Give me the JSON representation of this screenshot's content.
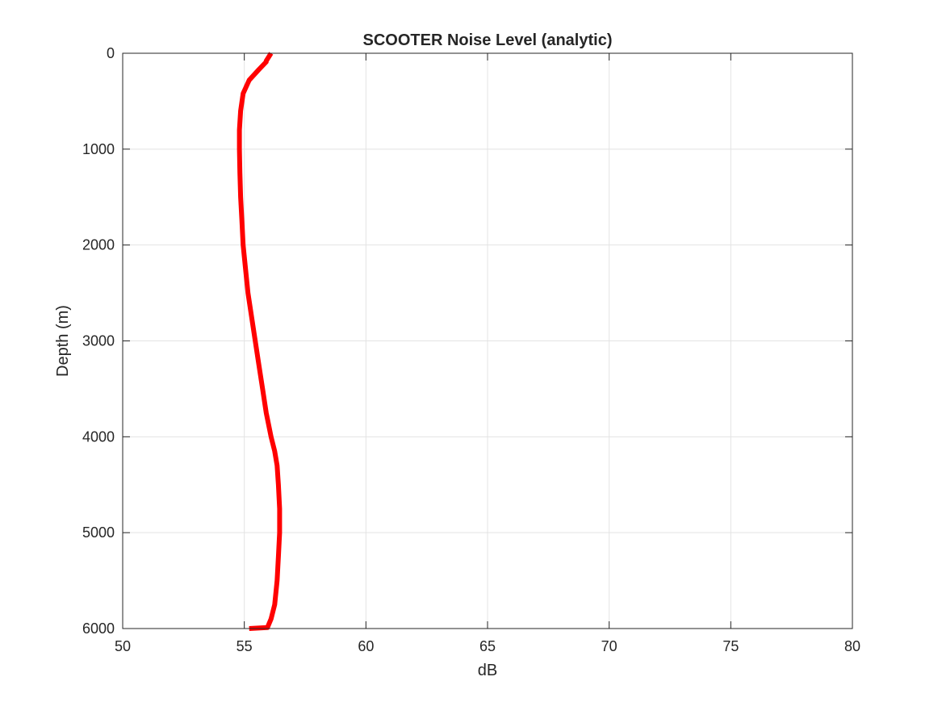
{
  "chart_data": {
    "type": "line",
    "title": "SCOOTER Noise Level (analytic)",
    "xlabel": "dB",
    "ylabel": "Depth (m)",
    "xlim": [
      50,
      80
    ],
    "ylim": [
      0,
      6000
    ],
    "y_reversed": true,
    "grid": true,
    "x_ticks": [
      "50",
      "55",
      "60",
      "65",
      "70",
      "75",
      "80"
    ],
    "y_ticks": [
      "0",
      "1000",
      "2000",
      "3000",
      "4000",
      "5000",
      "6000"
    ],
    "series": [
      {
        "color": "#ff0000",
        "x": [
          56.1,
          55.9,
          55.9,
          55.6,
          55.2,
          54.95,
          54.85,
          54.8,
          54.8,
          54.82,
          54.85,
          54.9,
          54.95,
          55.05,
          55.15,
          55.3,
          55.45,
          55.6,
          55.75,
          55.9,
          56.1,
          56.25,
          56.35,
          56.4,
          56.45,
          56.45,
          56.4,
          56.35,
          56.25,
          56.1,
          55.95,
          55.2
        ],
        "y": [
          0,
          80,
          90,
          170,
          280,
          420,
          600,
          800,
          1000,
          1250,
          1500,
          1750,
          2000,
          2250,
          2500,
          2750,
          3000,
          3250,
          3500,
          3750,
          4000,
          4150,
          4300,
          4500,
          4750,
          5000,
          5250,
          5500,
          5750,
          5900,
          5990,
          6000
        ]
      }
    ]
  }
}
